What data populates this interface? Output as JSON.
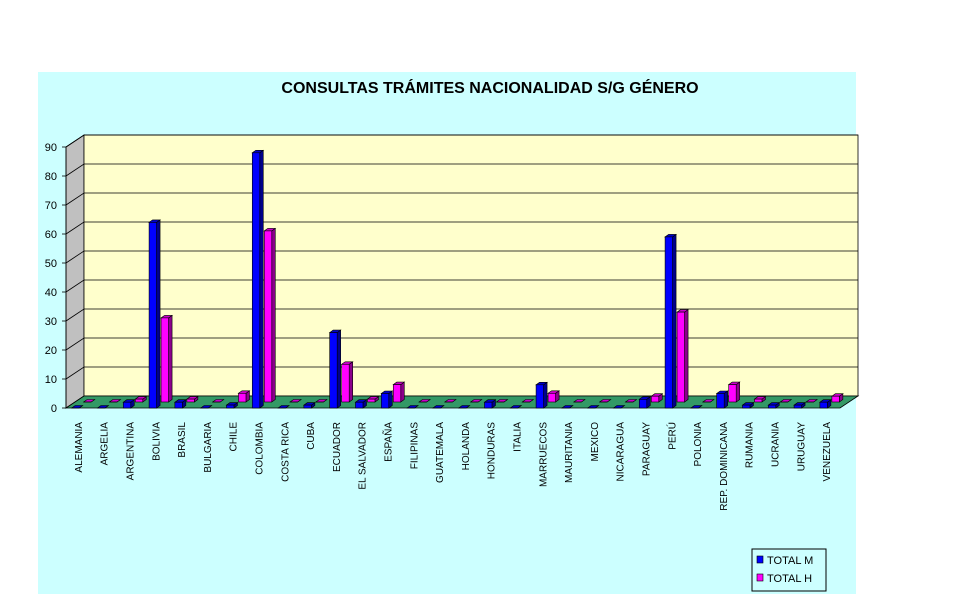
{
  "chart_data": {
    "type": "bar",
    "title": "CONSULTAS TRÁMITES NACIONALIDAD S/G GÉNERO",
    "categories": [
      "ALEMANIA",
      "ARGELIA",
      "ARGENTINA",
      "BOLIVIA",
      "BRASIL",
      "BULGARIA",
      "CHILE",
      "COLOMBIA",
      "COSTA RICA",
      "CUBA",
      "ECUADOR",
      "EL SALVADOR",
      "ESPAÑA",
      "FILIPINAS",
      "GUATEMALA",
      "HOLANDA",
      "HONDURAS",
      "ITALIA",
      "MARRUECOS",
      "MAURITANIA",
      "MEXICO",
      "NICARAGUA",
      "PARAGUAY",
      "PERÚ",
      "POLONIA",
      "REP. DOMINICANA",
      "RUMANIA",
      "UCRANIA",
      "URUGUAY",
      "VENEZUELA"
    ],
    "series": [
      {
        "name": "TOTAL M",
        "color": "#0000ff",
        "values": [
          0,
          0,
          2,
          64,
          2,
          0,
          1,
          88,
          0,
          1,
          26,
          2,
          5,
          0,
          0,
          0,
          2,
          0,
          8,
          0,
          0,
          0,
          3,
          59,
          0,
          5,
          1,
          1,
          1,
          2
        ]
      },
      {
        "name": "TOTAL H",
        "color": "#ff00ff",
        "values": [
          0,
          0,
          1,
          29,
          1,
          0,
          3,
          59,
          0,
          0,
          13,
          1,
          6,
          0,
          0,
          0,
          0,
          0,
          3,
          0,
          0,
          0,
          2,
          31,
          0,
          6,
          1,
          0,
          0,
          2
        ]
      }
    ],
    "ylim": [
      0,
      90
    ],
    "yticks": [
      0,
      10,
      20,
      30,
      40,
      50,
      60,
      70,
      80,
      90
    ],
    "grid": true,
    "legend_position": "bottom-right",
    "colors": {
      "plot_back": "#ffffcc",
      "plot_side": "#c0c0c0",
      "floor": "#339966",
      "chart_back": "#ccffff"
    }
  }
}
